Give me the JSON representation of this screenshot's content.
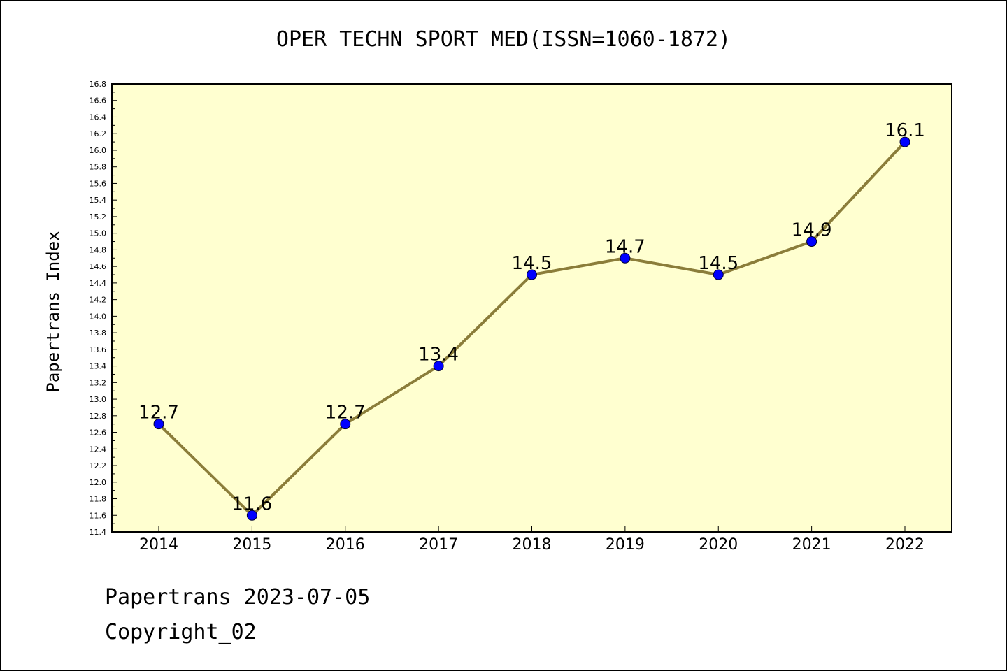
{
  "chart_data": {
    "type": "line",
    "title": "OPER TECHN SPORT MED(ISSN=1060-1872)",
    "ylabel": "Papertrans Index",
    "xlabel": "",
    "categories": [
      "2014",
      "2015",
      "2016",
      "2017",
      "2018",
      "2019",
      "2020",
      "2021",
      "2022"
    ],
    "series": [
      {
        "values": [
          12.7,
          11.6,
          12.7,
          13.4,
          14.5,
          14.7,
          14.5,
          14.9,
          16.1
        ]
      }
    ],
    "data_labels": [
      "12.7",
      "11.6",
      "12.7",
      "13.4",
      "14.5",
      "14.7",
      "14.5",
      "14.9",
      "16.1"
    ],
    "ylim": [
      11.4,
      16.8
    ],
    "ytick_step": 0.2,
    "grid": false,
    "colors": {
      "plot_bg": "#ffffd0",
      "line": "#8b7d3a",
      "marker": "#0000ff"
    }
  },
  "footer": {
    "line1": "Papertrans 2023-07-05",
    "line2": "Copyright_02"
  }
}
